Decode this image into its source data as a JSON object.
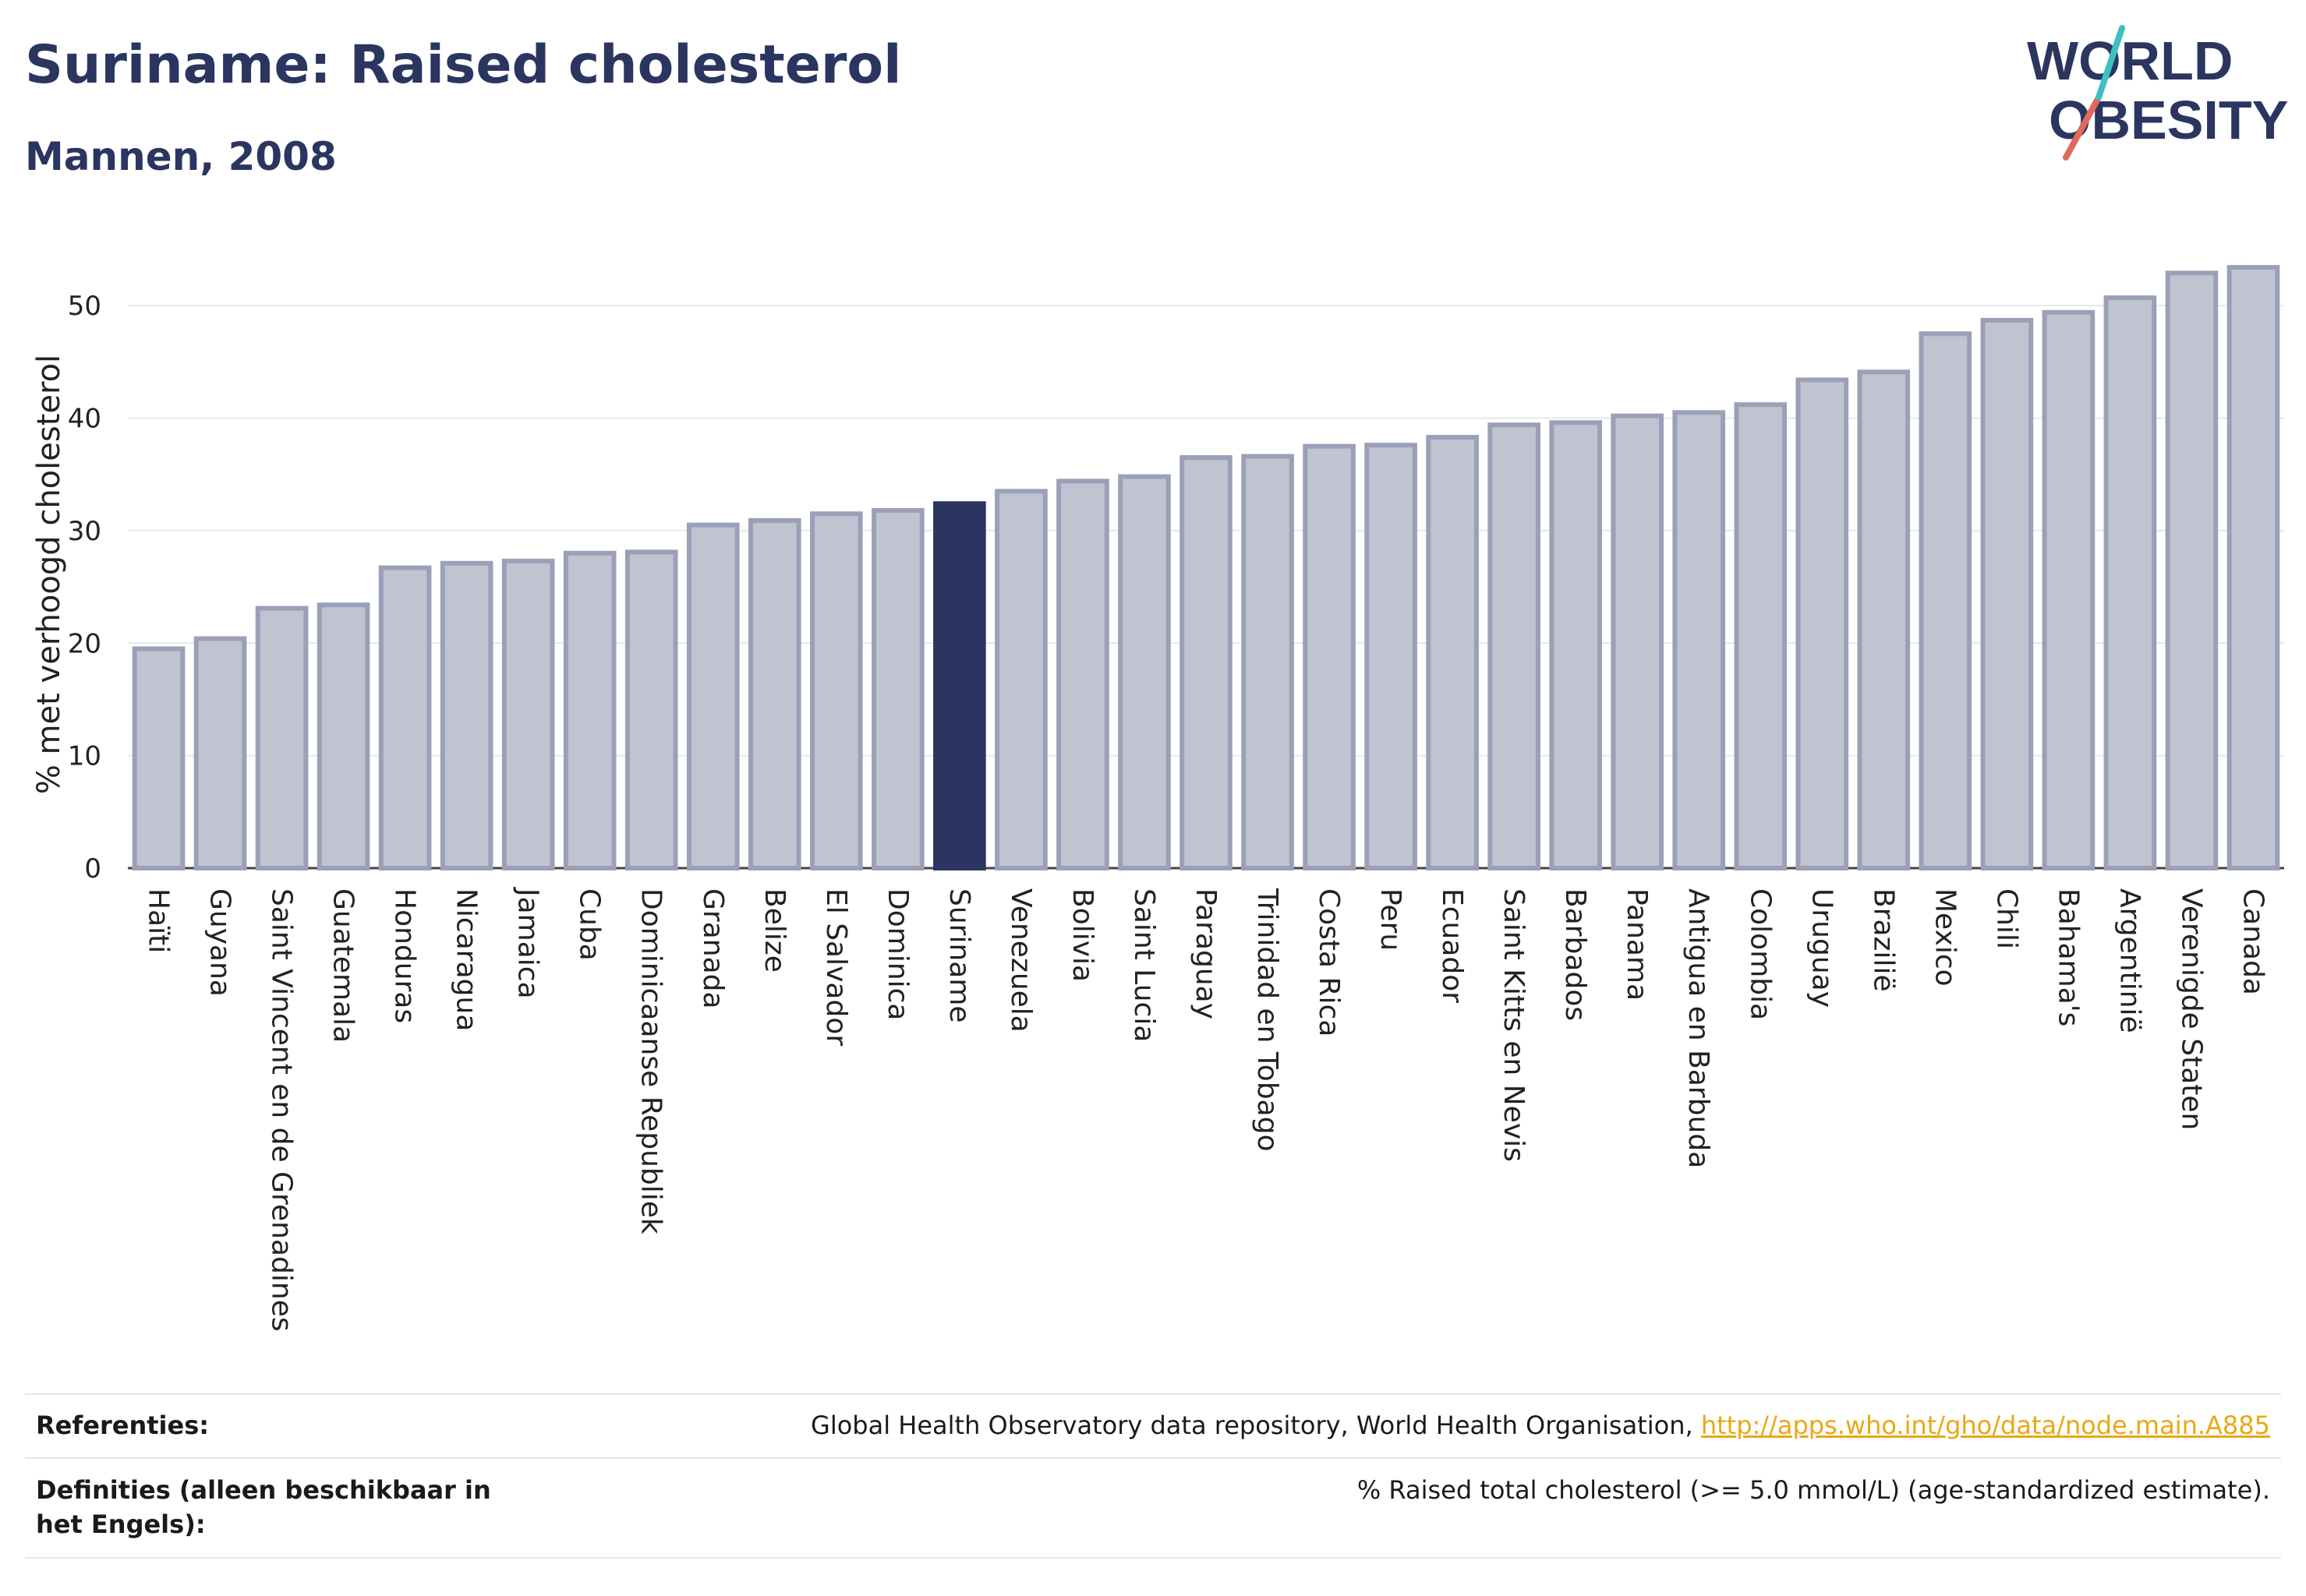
{
  "header": {
    "title": "Suriname: Raised cholesterol",
    "subtitle": "Mannen, 2008"
  },
  "logo": {
    "line1": "WORLD",
    "line2": "OBESITY"
  },
  "chart_data": {
    "type": "bar",
    "ylabel": "% met verhoogd cholesterol",
    "ylim": [
      0,
      55
    ],
    "yticks": [
      0,
      10,
      20,
      30,
      40,
      50
    ],
    "grid": true,
    "highlight": "Suriname",
    "colors": {
      "bar_fill": "#c0c3d0",
      "bar_edge": "#9ba0b8",
      "highlight": "#2b3561",
      "grid": "#e8e8e8"
    },
    "categories": [
      "Haïti",
      "Guyana",
      "Saint Vincent en de Grenadines",
      "Guatemala",
      "Honduras",
      "Nicaragua",
      "Jamaica",
      "Cuba",
      "Dominicaanse Republiek",
      "Granada",
      "Belize",
      "El Salvador",
      "Dominica",
      "Suriname",
      "Venezuela",
      "Bolivia",
      "Saint Lucia",
      "Paraguay",
      "Trinidad en Tobago",
      "Costa Rica",
      "Peru",
      "Ecuador",
      "Saint Kitts en Nevis",
      "Barbados",
      "Panama",
      "Antigua en Barbuda",
      "Colombia",
      "Uruguay",
      "Brazilië",
      "Mexico",
      "Chili",
      "Bahama's",
      "Argentinië",
      "Verenigde Staten",
      "Canada"
    ],
    "values": [
      19.5,
      20.4,
      23.1,
      23.4,
      26.7,
      27.1,
      27.3,
      28.0,
      28.1,
      30.5,
      30.9,
      31.5,
      31.8,
      32.4,
      33.5,
      34.4,
      34.8,
      36.5,
      36.6,
      37.5,
      37.6,
      38.3,
      39.4,
      39.6,
      40.2,
      40.5,
      41.2,
      43.4,
      44.1,
      47.5,
      48.7,
      49.4,
      50.7,
      52.9,
      53.4
    ]
  },
  "footer": {
    "references_label": "Referenties:",
    "references_text": "Global Health Observatory data repository, World Health Organisation, ",
    "references_link": "http://apps.who.int/gho/data/node.main.A885",
    "definitions_label": "Definities (alleen beschikbaar in het Engels):",
    "definitions_text": "% Raised total cholesterol (>= 5.0 mmol/L) (age-standardized estimate)."
  }
}
